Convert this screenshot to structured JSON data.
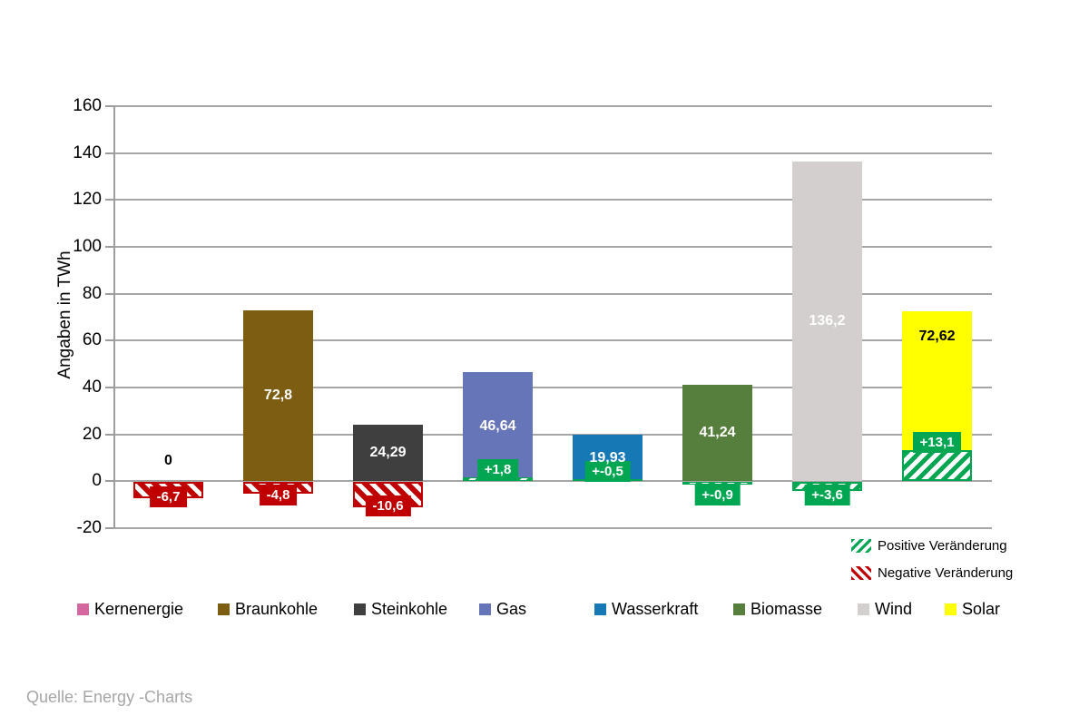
{
  "chart_data": {
    "type": "bar",
    "title": "",
    "xlabel": "",
    "ylabel": "Angaben in TWh",
    "ylim": [
      -20,
      160
    ],
    "ytick_interval": 20,
    "grid": true,
    "legend_position": "bottom",
    "categories": [
      "Kernenergie",
      "Braunkohle",
      "Steinkohle",
      "Gas",
      "Wasserkraft",
      "Biomasse",
      "Wind",
      "Solar"
    ],
    "values": [
      0,
      72.8,
      24.29,
      46.64,
      19.93,
      41.24,
      136.2,
      72.62
    ],
    "bars": [
      {
        "name": "Kernenergie",
        "color": "#d4679e",
        "value": 0,
        "value_label": "0",
        "label_style": "above-zero",
        "label_color": "#000000",
        "change": {
          "value": -6.7,
          "label": "-6,7",
          "style": "negative"
        }
      },
      {
        "name": "Braunkohle",
        "color": "#7c5d12",
        "value": 72.8,
        "value_label": "72,8",
        "label_style": "center",
        "label_color": "#ffffff",
        "change": {
          "value": -4.8,
          "label": "-4,8",
          "style": "negative"
        }
      },
      {
        "name": "Steinkohle",
        "color": "#3f3f3f",
        "value": 24.29,
        "value_label": "24,29",
        "label_style": "center",
        "label_color": "#ffffff",
        "change": {
          "value": -10.6,
          "label": "-10,6",
          "style": "negative"
        }
      },
      {
        "name": "Gas",
        "color": "#6674b8",
        "value": 46.64,
        "value_label": "46,64",
        "label_style": "center",
        "label_color": "#ffffff",
        "change": {
          "value": 1.8,
          "label": "+1,8",
          "style": "positive"
        }
      },
      {
        "name": "Wasserkraft",
        "color": "#1679b5",
        "value": 19.93,
        "value_label": "19,93",
        "label_style": "center",
        "label_color": "#ffffff",
        "change": {
          "value": 0.5,
          "label": "+-0,5",
          "style": "positive"
        }
      },
      {
        "name": "Biomasse",
        "color": "#567f3d",
        "value": 41.24,
        "value_label": "41,24",
        "label_style": "center",
        "label_color": "#ffffff",
        "change": {
          "value": -0.9,
          "label": "+-0,9",
          "style": "positive"
        }
      },
      {
        "name": "Wind",
        "color": "#d3cfcf",
        "value": 136.2,
        "value_label": "136,2",
        "label_style": "center",
        "label_color": "#ffffff",
        "change": {
          "value": -3.6,
          "label": "+-3,6",
          "style": "positive"
        }
      },
      {
        "name": "Solar",
        "color": "#ffff00",
        "value": 72.62,
        "value_label": "72,62",
        "label_style": "inside-top",
        "label_color": "#000000",
        "change": {
          "value": 13.1,
          "label": "+13,1",
          "style": "positive"
        }
      }
    ],
    "change_legend": [
      {
        "label": "Positive Veränderung",
        "style": "positive"
      },
      {
        "label": "Negative Veränderung",
        "style": "negative"
      }
    ],
    "colors": {
      "positive_change": "#00a651",
      "negative_change": "#c00000",
      "gridline": "#a6a6a6"
    }
  },
  "figure": {
    "y_axis_title": "Angaben in TWh",
    "source_note": "Quelle: Energy -Charts"
  }
}
